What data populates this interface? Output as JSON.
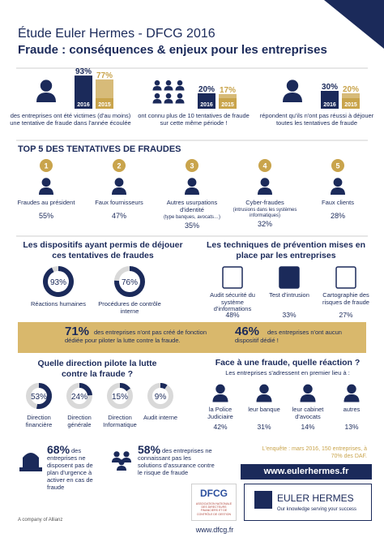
{
  "header": {
    "title": "Étude Euler Hermes - DFCG 2016",
    "subtitle": "Fraude : conséquences & enjeux pour les entreprises"
  },
  "stats": [
    {
      "values": [
        93,
        77
      ],
      "value_labels": [
        "93%",
        "77%"
      ],
      "years": [
        "2016",
        "2015"
      ],
      "text": "des entreprises ont été victimes (d'au moins) une tentative de fraude dans l'année écoulée"
    },
    {
      "values": [
        20,
        17
      ],
      "value_labels": [
        "20%",
        "17%"
      ],
      "years": [
        "2016",
        "2015"
      ],
      "text": "ont connu plus de 10 tentatives de fraude sur cette même période !"
    },
    {
      "values": [
        30,
        20
      ],
      "value_labels": [
        "30%",
        "20%"
      ],
      "years": [
        "2016",
        "2015"
      ],
      "text": "répondent qu'ils n'ont pas réussi à déjouer toutes les tentatives de fraude"
    }
  ],
  "top5": {
    "title": "TOP 5 DES TENTATIVES DE FRAUDES",
    "items": [
      {
        "rank": "1",
        "label": "Fraudes au président",
        "pct": "55%"
      },
      {
        "rank": "2",
        "label": "Faux fournisseurs",
        "pct": "47%"
      },
      {
        "rank": "3",
        "label": "Autres usurpations d'identité",
        "note": "(type banques, avocats…)",
        "pct": "35%"
      },
      {
        "rank": "4",
        "label": "Cyber-fraudes",
        "note": "(intrusions dans les systèmes informatiques)",
        "pct": "32%"
      },
      {
        "rank": "5",
        "label": "Faux clients",
        "pct": "28%"
      }
    ]
  },
  "dispositifs": {
    "title": "Les dispositifs ayant permis de déjouer ces tentatives de fraudes",
    "items": [
      {
        "value": 93,
        "label": "93%",
        "text": "Réactions humaines"
      },
      {
        "value": 76,
        "label": "76%",
        "text": "Procédures de contrôle interne"
      }
    ]
  },
  "techniques": {
    "title": "Les techniques de prévention mises en place par les entreprises",
    "items": [
      {
        "label": "Audit sécurité du système d'informations",
        "pct": "48%"
      },
      {
        "label": "Test d'intrusion",
        "pct": "33%"
      },
      {
        "label": "Cartographie des risques de fraude",
        "pct": "27%"
      }
    ]
  },
  "banner": [
    {
      "pct": "71%",
      "text": "des entreprises n'ont pas créé de fonction dédiée pour piloter la lutte contre la fraude."
    },
    {
      "pct": "46%",
      "text": "des entreprises n'ont aucun dispositif dédié !"
    }
  ],
  "direction": {
    "title": "Quelle direction pilote la lutte contre la fraude ?",
    "items": [
      {
        "value": 53,
        "label": "53%",
        "text": "Direction financière"
      },
      {
        "value": 24,
        "label": "24%",
        "text": "Direction générale"
      },
      {
        "value": 15,
        "label": "15%",
        "text": "Direction Informatique"
      },
      {
        "value": 9,
        "label": "9%",
        "text": "Audit interne"
      }
    ]
  },
  "reaction": {
    "title": "Face à une fraude, quelle réaction ?",
    "subtitle": "Les entreprises s'adressent en premier lieu à :",
    "items": [
      {
        "label": "la Police Judiciaire",
        "pct": "42%"
      },
      {
        "label": "leur banque",
        "pct": "31%"
      },
      {
        "label": "leur cabinet d'avocats",
        "pct": "14%"
      },
      {
        "label": "autres",
        "pct": "13%"
      }
    ]
  },
  "facts": [
    {
      "pct": "68%",
      "text": "des entreprises ne disposent pas de plan d'urgence à activer en cas de fraude"
    },
    {
      "pct": "58%",
      "text": "des entreprises ne connaissant pas les solutions d'assurance contre le risque de fraude"
    }
  ],
  "survey": "L'enquête : mars 2016, 150 entreprises, à 70% des DAF.",
  "footer": {
    "url": "www.eulerhermes.fr",
    "dfcg": "DFCG",
    "dfcg_sub": "ASSOCIATION NATIONALE DES DIRECTEURS FINANCIERS ET DE CONTRÔLE DE GESTION",
    "eh": "EULER HERMES",
    "eh_tag": "Our knowledge serving your success",
    "allianz": "A company of Allianz",
    "dfcg_url": "www.dfcg.fr"
  }
}
